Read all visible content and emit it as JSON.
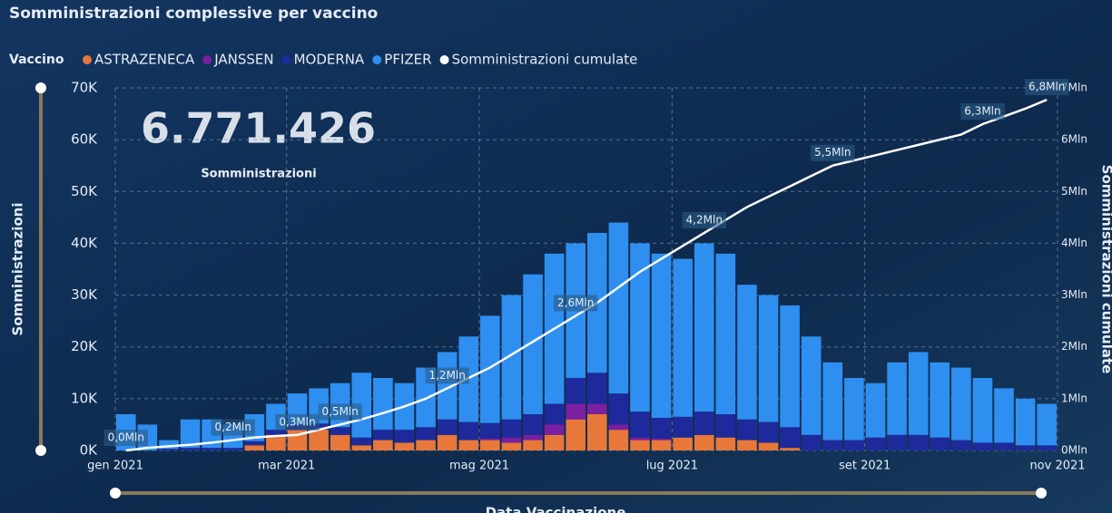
{
  "chart_data": {
    "type": "stacked-bar-line",
    "title": "Somministrazioni complessive per vaccino",
    "legend_title": "Vaccino",
    "kpi_value": "6.771.426",
    "kpi_label": "Somministrazioni",
    "y_label": "Somministrazioni",
    "y2_label": "Somministrazioni cumulate",
    "x_label": "Data Vaccinazione",
    "categories": [
      "gen 2021",
      null,
      null,
      null,
      null,
      null,
      null,
      null,
      "mar 2021",
      null,
      null,
      null,
      null,
      null,
      null,
      null,
      null,
      "mag 2021",
      null,
      null,
      null,
      null,
      null,
      null,
      null,
      null,
      "lug 2021",
      null,
      null,
      null,
      null,
      null,
      null,
      null,
      null,
      "set 2021",
      null,
      null,
      null,
      null,
      null,
      null,
      null,
      "nov 2021"
    ],
    "series": [
      {
        "name": "ASTRAZENECA",
        "color": "#e8773a",
        "values": [
          0,
          0,
          0,
          0,
          0,
          0,
          1000,
          3000,
          4000,
          4000,
          3000,
          1000,
          2000,
          1500,
          2000,
          3000,
          2000,
          2000,
          1500,
          2000,
          3000,
          6000,
          7000,
          4000,
          2000,
          2000,
          2500,
          3000,
          2500,
          2000,
          1500,
          500,
          0,
          0,
          0,
          0,
          0,
          0,
          0,
          0,
          0,
          0,
          0,
          0
        ]
      },
      {
        "name": "JANSSEN",
        "color": "#7b1fa2",
        "values": [
          0,
          0,
          0,
          0,
          0,
          0,
          0,
          0,
          0,
          0,
          0,
          0,
          0,
          0,
          0,
          0,
          0,
          300,
          1000,
          1000,
          2000,
          3000,
          2000,
          1000,
          500,
          300,
          0,
          0,
          0,
          0,
          0,
          0,
          0,
          0,
          0,
          0,
          0,
          0,
          0,
          0,
          0,
          0,
          0,
          0
        ]
      },
      {
        "name": "MODERNA",
        "color": "#1e2a9c",
        "values": [
          0,
          0,
          300,
          500,
          500,
          500,
          800,
          1000,
          1000,
          1200,
          1500,
          1500,
          2000,
          2500,
          2500,
          3000,
          3500,
          3000,
          3500,
          4000,
          4000,
          5000,
          6000,
          6000,
          5000,
          4000,
          4000,
          4500,
          4500,
          4000,
          4000,
          4000,
          3000,
          2000,
          2000,
          2500,
          3000,
          3000,
          2500,
          2000,
          1500,
          1500,
          1000,
          1000
        ]
      },
      {
        "name": "PFIZER",
        "color": "#2f8ff0",
        "values": [
          7000,
          5000,
          1700,
          5500,
          5500,
          4500,
          5200,
          5000,
          6000,
          6800,
          8500,
          12500,
          10000,
          9000,
          11500,
          13000,
          16500,
          20700,
          24000,
          27000,
          29000,
          26000,
          27000,
          33000,
          32500,
          31700,
          30500,
          32500,
          31000,
          26000,
          24500,
          23500,
          19000,
          15000,
          12000,
          10500,
          14000,
          16000,
          14500,
          14000,
          12500,
          10500,
          9000,
          8000
        ]
      },
      {
        "name": "Somministrazioni cumulate",
        "color": "#ffffff",
        "axis": "y2",
        "values": [
          0,
          50000,
          80000,
          110000,
          150000,
          200000,
          250000,
          280000,
          300000,
          400000,
          500000,
          600000,
          720000,
          850000,
          1000000,
          1200000,
          1400000,
          1600000,
          1850000,
          2100000,
          2350000,
          2600000,
          2850000,
          3150000,
          3450000,
          3700000,
          3950000,
          4200000,
          4450000,
          4700000,
          4900000,
          5100000,
          5300000,
          5500000,
          5600000,
          5700000,
          5800000,
          5900000,
          6000000,
          6100000,
          6300000,
          6450000,
          6600000,
          6771426
        ],
        "value_labels": [
          "0,0Mln",
          null,
          null,
          null,
          null,
          "0,2Mln",
          null,
          null,
          "0,3Mln",
          null,
          "0,5Mln",
          null,
          null,
          null,
          null,
          "1,2Mln",
          null,
          null,
          null,
          null,
          null,
          "2,6Mln",
          null,
          null,
          null,
          null,
          null,
          "4,2Mln",
          null,
          null,
          null,
          null,
          null,
          "5,5Mln",
          null,
          null,
          null,
          null,
          null,
          null,
          "6,3Mln",
          null,
          null,
          "6,8Mln"
        ]
      }
    ],
    "ylim": [
      0,
      70000
    ],
    "yticks": [
      {
        "value": 0,
        "label": "0K"
      },
      {
        "value": 10000,
        "label": "10K"
      },
      {
        "value": 20000,
        "label": "20K"
      },
      {
        "value": 30000,
        "label": "30K"
      },
      {
        "value": 40000,
        "label": "40K"
      },
      {
        "value": 50000,
        "label": "50K"
      },
      {
        "value": 60000,
        "label": "60K"
      },
      {
        "value": 70000,
        "label": "70K"
      }
    ],
    "y2lim": [
      0,
      7000000
    ],
    "y2ticks": [
      {
        "value": 0,
        "label": "0Mln"
      },
      {
        "value": 1000000,
        "label": "1Mln"
      },
      {
        "value": 2000000,
        "label": "2Mln"
      },
      {
        "value": 3000000,
        "label": "3Mln"
      },
      {
        "value": 4000000,
        "label": "4Mln"
      },
      {
        "value": 5000000,
        "label": "5Mln"
      },
      {
        "value": 6000000,
        "label": "6Mln"
      },
      {
        "value": 7000000,
        "label": "7Mln"
      }
    ],
    "grid": true
  }
}
